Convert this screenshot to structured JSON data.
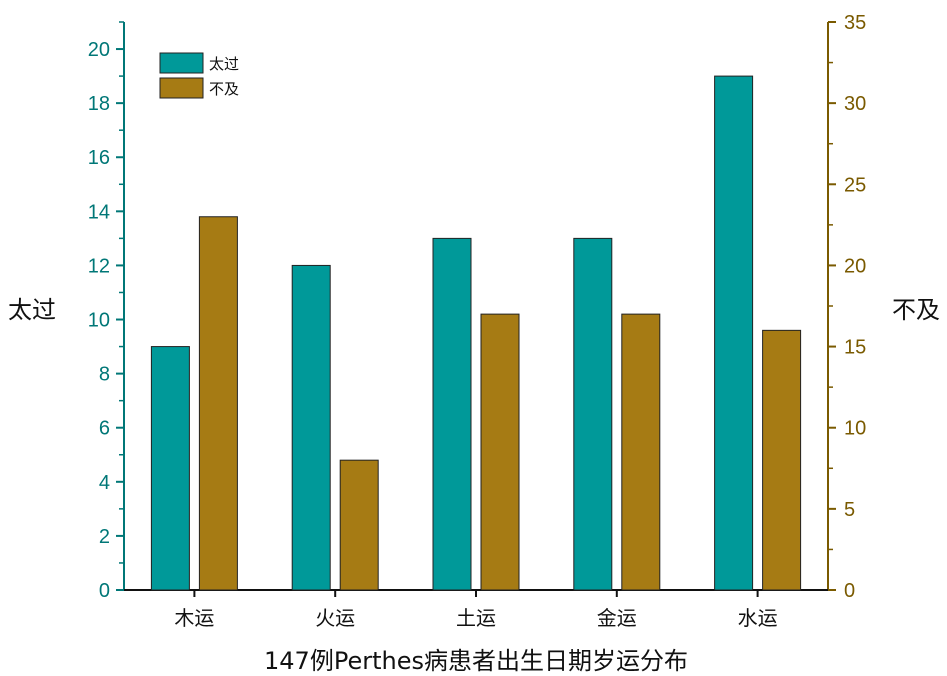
{
  "chart_data": {
    "type": "bar",
    "title": "",
    "xlabel": "147例Perthes病患者出生日期岁运分布",
    "ylabel_left": "太过",
    "ylabel_right": "不及",
    "categories": [
      "木运",
      "火运",
      "土运",
      "金运",
      "水运"
    ],
    "series": [
      {
        "name": "太过",
        "axis": "left",
        "color": "#009999",
        "values": [
          9,
          12,
          13,
          13,
          19
        ]
      },
      {
        "name": "不及",
        "axis": "right",
        "color": "#A67B14",
        "values": [
          23,
          8,
          17,
          17,
          16
        ]
      }
    ],
    "ylim_left": [
      0,
      21
    ],
    "yticks_left": [
      0,
      2,
      4,
      6,
      8,
      10,
      12,
      14,
      16,
      18,
      20
    ],
    "ylim_right": [
      0,
      35
    ],
    "yticks_right": [
      0,
      5,
      10,
      15,
      20,
      25,
      30,
      35
    ],
    "left_axis_color": "#007777",
    "right_axis_color": "#7a5a00",
    "grid": false,
    "legend_position": "top-left"
  }
}
